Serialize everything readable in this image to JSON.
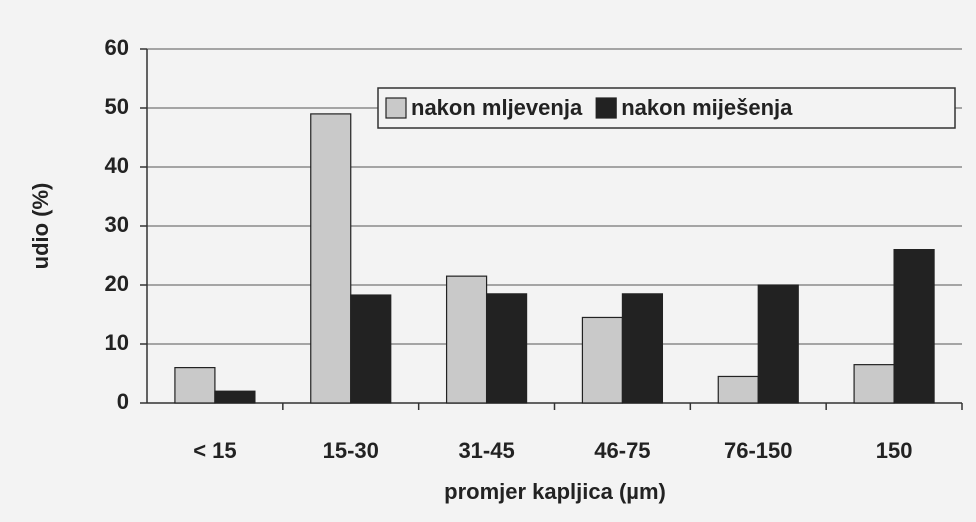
{
  "chart_data": {
    "type": "bar",
    "categories": [
      "< 15",
      "15-30",
      "31-45",
      "46-75",
      "76-150",
      "150"
    ],
    "series": [
      {
        "name": "nakon mljevenja",
        "color": "#c9c9c9",
        "values": [
          6,
          49,
          21.5,
          14.5,
          4.5,
          6.5
        ]
      },
      {
        "name": "nakon miješenja",
        "color": "#222222",
        "values": [
          2,
          18.3,
          18.5,
          18.5,
          20,
          26
        ]
      }
    ],
    "ylabel": "udio (%)",
    "xlabel": "promjer kapljica (µm)",
    "ylim": [
      0,
      60
    ],
    "yticks": [
      0,
      10,
      20,
      30,
      40,
      50,
      60
    ],
    "grid": true,
    "legend": "upper right"
  }
}
